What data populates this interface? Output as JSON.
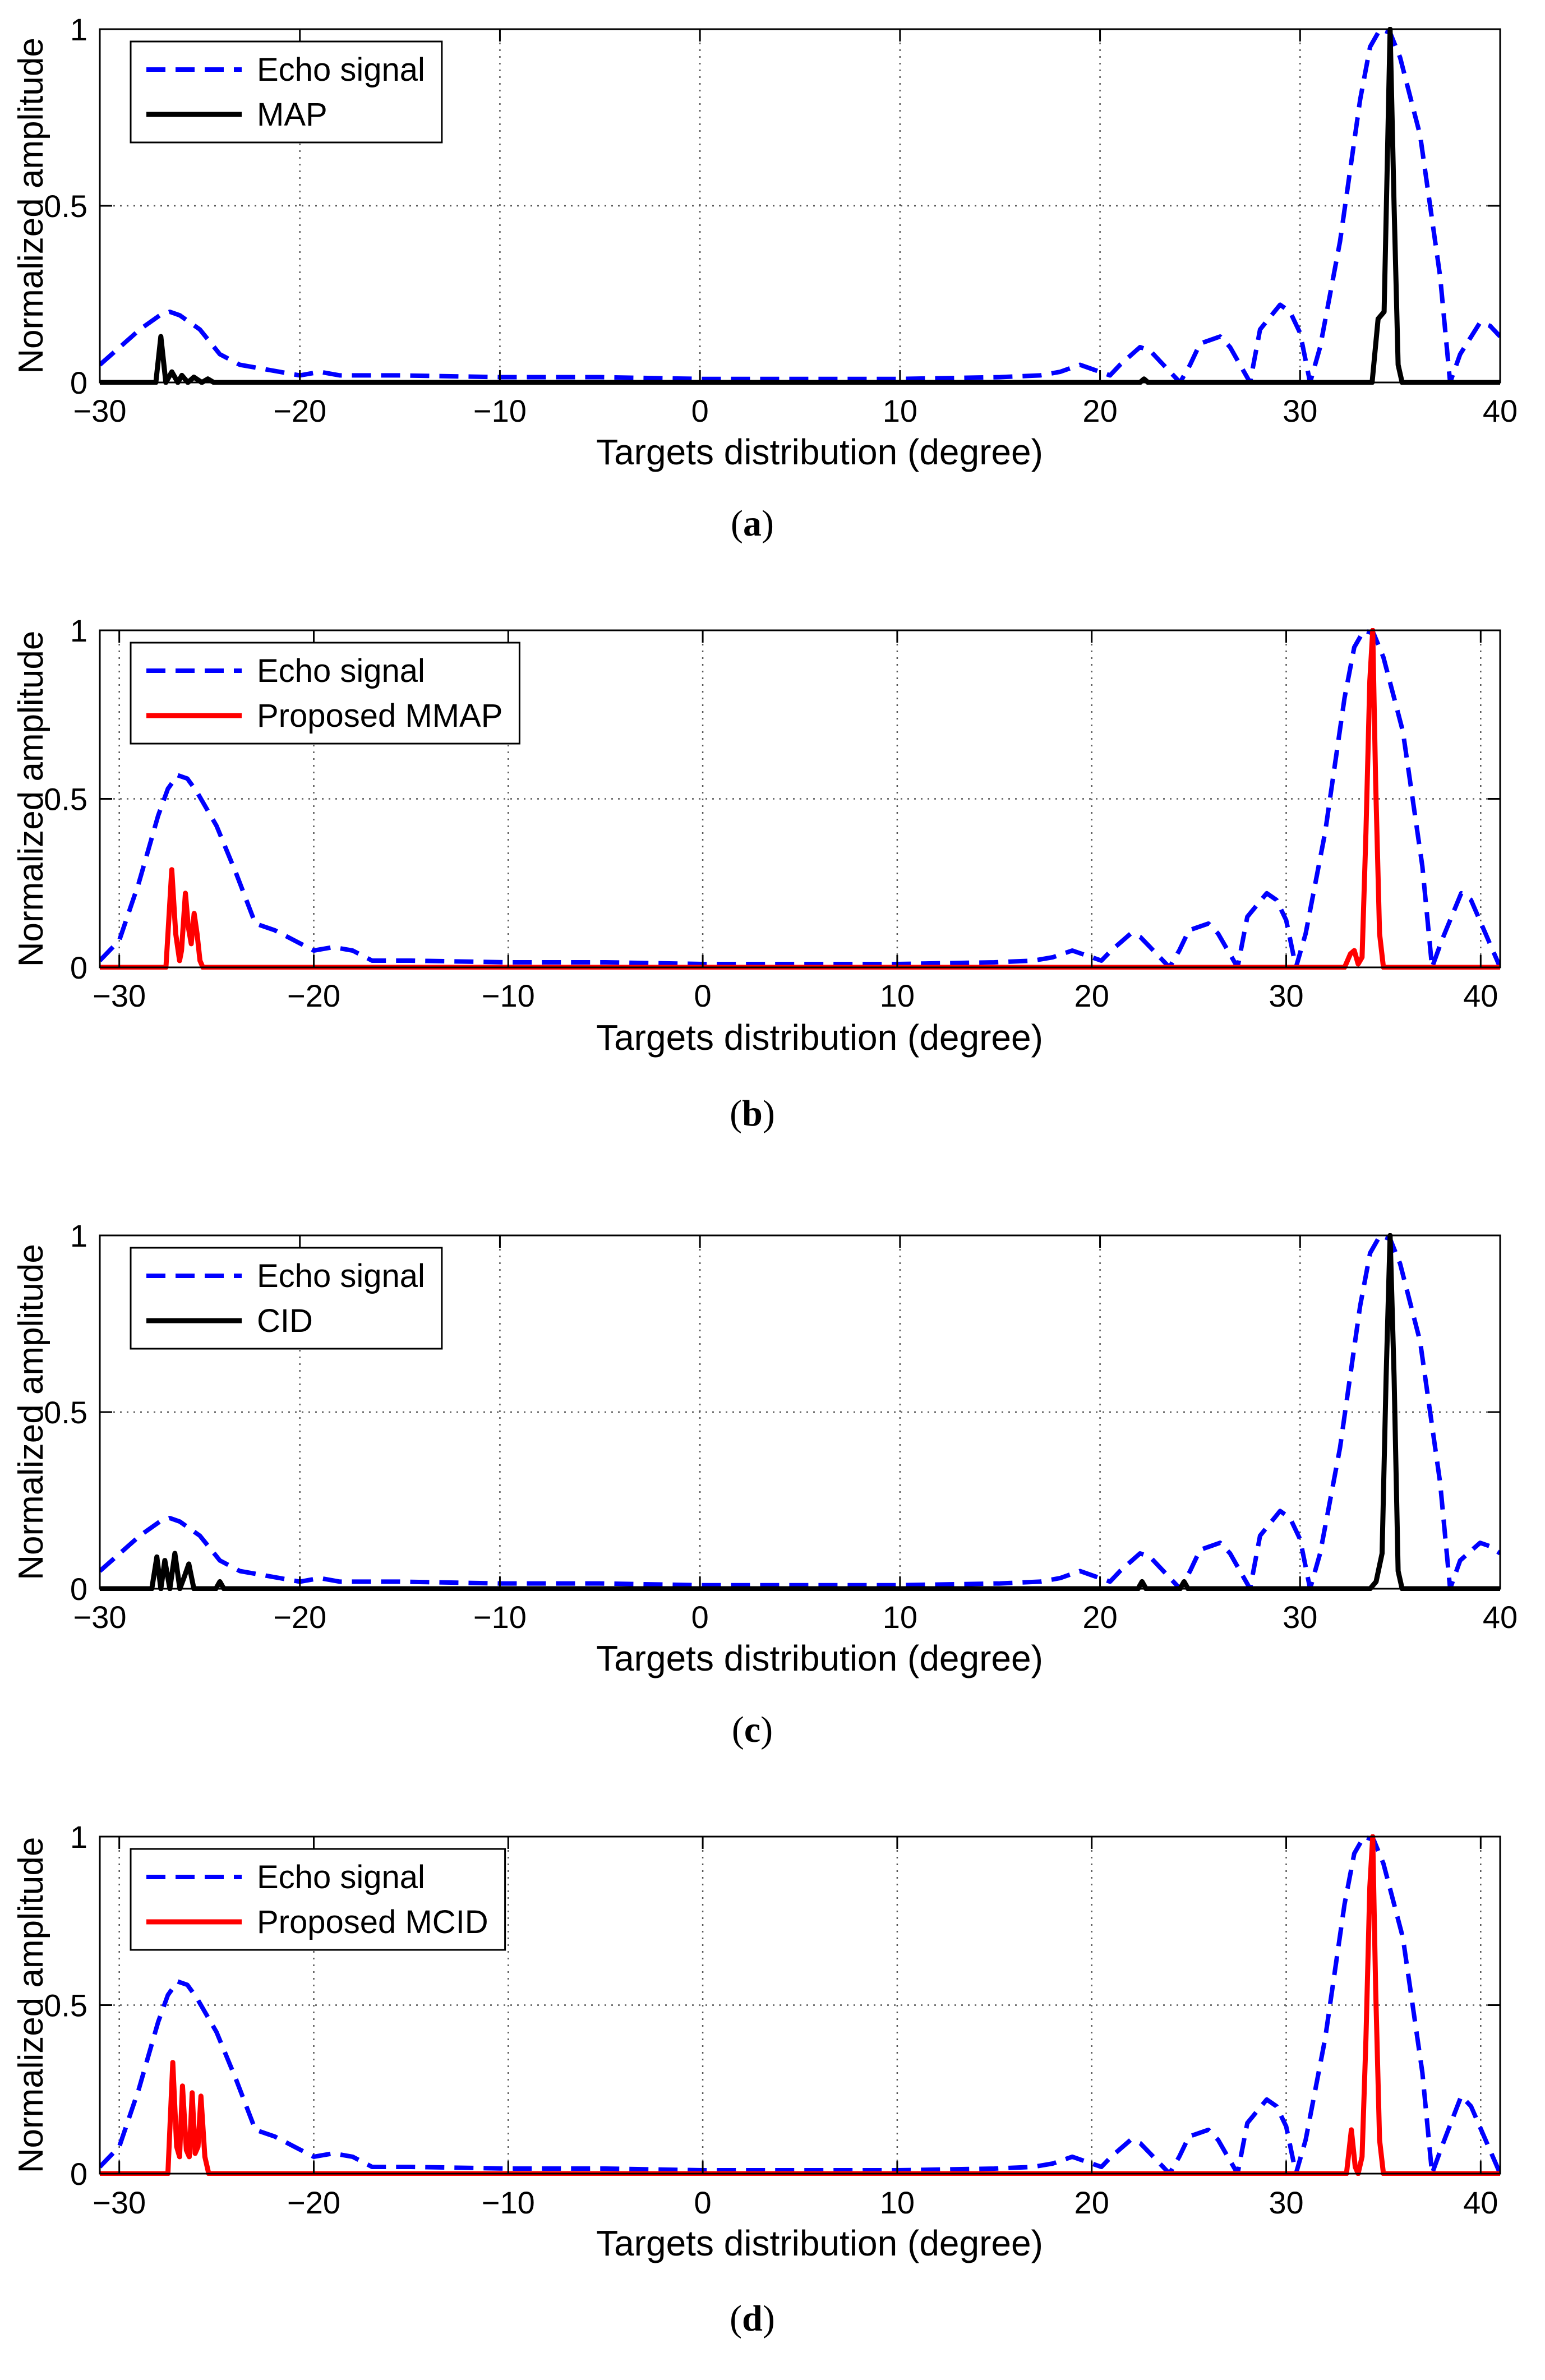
{
  "colors": {
    "echo": "#0000ff",
    "map": "#000000",
    "mmap": "#ff0000",
    "cid": "#000000",
    "mcid": "#ff0000",
    "grid": "#555555",
    "axes": "#000000"
  },
  "chart_data": [
    {
      "type": "line",
      "caption": "a",
      "xlabel": "Targets distribution (degree)",
      "ylabel": "Normalized amplitude",
      "xlim": [
        -30,
        40
      ],
      "ylim": [
        0,
        1
      ],
      "xticks": [
        -30,
        -20,
        -10,
        0,
        10,
        20,
        30,
        40
      ],
      "xtick_labels": [
        "−30",
        "−20",
        "−10",
        "0",
        "10",
        "20",
        "30",
        "40"
      ],
      "yticks": [
        0,
        0.5,
        1
      ],
      "ytick_labels": [
        "0",
        "0.5",
        "1"
      ],
      "grid": true,
      "legend_position": "top-left",
      "series": [
        {
          "name": "Echo signal",
          "style": "dashed",
          "color_key": "echo",
          "x": [
            -30,
            -29,
            -28,
            -27,
            -26.5,
            -26,
            -25,
            -24,
            -23,
            -22,
            -21,
            -20,
            -19,
            -18,
            -17,
            -15,
            -10,
            -5,
            0,
            5,
            10,
            15,
            17,
            18,
            19,
            19.5,
            20.5,
            21,
            22,
            22.5,
            23,
            24,
            24.5,
            25,
            26,
            26.5,
            27.5,
            28,
            29,
            29.5,
            30,
            30.5,
            31,
            32,
            33,
            33.5,
            34,
            34.5,
            35,
            36,
            37,
            37.5,
            38,
            39,
            39.5,
            40
          ],
          "y": [
            0.05,
            0.1,
            0.15,
            0.19,
            0.2,
            0.19,
            0.15,
            0.08,
            0.05,
            0.04,
            0.03,
            0.02,
            0.03,
            0.02,
            0.02,
            0.02,
            0.015,
            0.015,
            0.01,
            0.01,
            0.01,
            0.015,
            0.02,
            0.03,
            0.05,
            0.04,
            0.02,
            0.05,
            0.1,
            0.09,
            0.06,
            0.0,
            0.05,
            0.11,
            0.13,
            0.1,
            0.0,
            0.15,
            0.22,
            0.2,
            0.14,
            0.0,
            0.1,
            0.4,
            0.8,
            0.95,
            1.0,
            0.99,
            0.92,
            0.7,
            0.3,
            0.0,
            0.08,
            0.17,
            0.16,
            0.13
          ]
        },
        {
          "name": "MAP",
          "style": "solid",
          "color_key": "map",
          "x": [
            -30,
            -27.2,
            -26.95,
            -26.7,
            -26.4,
            -26.1,
            -25.9,
            -25.6,
            -25.3,
            -24.9,
            -24.6,
            -24.3,
            -24,
            -20,
            0,
            22,
            22.2,
            22.4,
            33.6,
            33.9,
            34.2,
            34.35,
            34.5,
            34.7,
            34.9,
            35.1,
            40
          ],
          "y": [
            0,
            0,
            0.13,
            0,
            0.03,
            0,
            0.02,
            0,
            0.015,
            0,
            0.01,
            0,
            0,
            0,
            0,
            0,
            0.01,
            0,
            0,
            0.18,
            0.2,
            0.6,
            1.0,
            0.5,
            0.05,
            0,
            0
          ]
        }
      ]
    },
    {
      "type": "line",
      "caption": "b",
      "xlabel": "Targets distribution (degree)",
      "ylabel": "Normalized amplitude",
      "xlim": [
        -31,
        41
      ],
      "ylim": [
        0,
        1
      ],
      "xticks": [
        -30,
        -20,
        -10,
        0,
        10,
        20,
        30,
        40
      ],
      "xtick_labels": [
        "−30",
        "−20",
        "−10",
        "0",
        "10",
        "20",
        "30",
        "40"
      ],
      "yticks": [
        0,
        0.5,
        1
      ],
      "ytick_labels": [
        "0",
        "0.5",
        "1"
      ],
      "grid": true,
      "legend_position": "top-left",
      "series": [
        {
          "name": "Echo signal",
          "style": "dashed",
          "color_key": "echo",
          "x": [
            -31,
            -30,
            -29,
            -28,
            -27.5,
            -27,
            -26.5,
            -26,
            -25,
            -24,
            -23,
            -22,
            -21,
            -20,
            -19,
            -18,
            -17,
            -15,
            -10,
            -5,
            0,
            5,
            10,
            15,
            17,
            18,
            19,
            19.5,
            20.5,
            21,
            22,
            22.5,
            23,
            24,
            24.5,
            25,
            26,
            26.5,
            27.5,
            28,
            29,
            29.5,
            30,
            30.5,
            31,
            32,
            33,
            33.5,
            34,
            34.5,
            35,
            36,
            37,
            37.5,
            38,
            39,
            39.5,
            41
          ],
          "y": [
            0.02,
            0.08,
            0.25,
            0.45,
            0.53,
            0.57,
            0.56,
            0.52,
            0.42,
            0.28,
            0.13,
            0.11,
            0.08,
            0.05,
            0.06,
            0.05,
            0.02,
            0.02,
            0.015,
            0.015,
            0.01,
            0.01,
            0.01,
            0.015,
            0.02,
            0.03,
            0.05,
            0.04,
            0.02,
            0.05,
            0.1,
            0.09,
            0.06,
            0.0,
            0.05,
            0.11,
            0.13,
            0.1,
            0.0,
            0.15,
            0.22,
            0.2,
            0.14,
            0.0,
            0.1,
            0.4,
            0.8,
            0.95,
            1.0,
            0.99,
            0.92,
            0.7,
            0.3,
            0.0,
            0.08,
            0.22,
            0.2,
            0.0
          ]
        },
        {
          "name": "Proposed MMAP",
          "style": "solid",
          "color_key": "mmap",
          "x": [
            -31,
            -27.6,
            -27.3,
            -27.1,
            -26.9,
            -26.8,
            -26.6,
            -26.45,
            -26.3,
            -26.15,
            -26.0,
            -25.85,
            -25.7,
            -25.4,
            0,
            33.0,
            33.3,
            33.5,
            33.7,
            33.9,
            34.1,
            34.3,
            34.45,
            34.6,
            34.8,
            35.0,
            41
          ],
          "y": [
            0,
            0,
            0.29,
            0.1,
            0.02,
            0.05,
            0.22,
            0.12,
            0.07,
            0.16,
            0.1,
            0.02,
            0,
            0,
            0,
            0,
            0.04,
            0.05,
            0.01,
            0.03,
            0.4,
            0.85,
            1.0,
            0.55,
            0.1,
            0,
            0
          ]
        }
      ]
    },
    {
      "type": "line",
      "caption": "c",
      "xlabel": "Targets distribution (degree)",
      "ylabel": "Normalized amplitude",
      "xlim": [
        -30,
        40
      ],
      "ylim": [
        0,
        1
      ],
      "xticks": [
        -30,
        -20,
        -10,
        0,
        10,
        20,
        30,
        40
      ],
      "xtick_labels": [
        "−30",
        "−20",
        "−10",
        "0",
        "10",
        "20",
        "30",
        "40"
      ],
      "yticks": [
        0,
        0.5,
        1
      ],
      "ytick_labels": [
        "0",
        "0.5",
        "1"
      ],
      "grid": true,
      "legend_position": "top-left",
      "series": [
        {
          "name": "Echo signal",
          "style": "dashed",
          "color_key": "echo",
          "x": [
            -30,
            -29,
            -28,
            -27,
            -26.5,
            -26,
            -25,
            -24,
            -23,
            -22,
            -21,
            -20,
            -19,
            -18,
            -17,
            -15,
            -10,
            -5,
            0,
            5,
            10,
            15,
            17,
            18,
            19,
            19.5,
            20.5,
            21,
            22,
            22.5,
            23,
            24,
            24.5,
            25,
            26,
            26.5,
            27.5,
            28,
            29,
            29.5,
            30,
            30.5,
            31,
            32,
            33,
            33.5,
            34,
            34.5,
            35,
            36,
            37,
            37.5,
            38,
            39,
            39.5,
            40
          ],
          "y": [
            0.05,
            0.1,
            0.15,
            0.19,
            0.2,
            0.19,
            0.15,
            0.08,
            0.05,
            0.04,
            0.03,
            0.02,
            0.03,
            0.02,
            0.02,
            0.02,
            0.015,
            0.015,
            0.01,
            0.01,
            0.01,
            0.015,
            0.02,
            0.03,
            0.05,
            0.04,
            0.02,
            0.05,
            0.1,
            0.09,
            0.06,
            0.0,
            0.05,
            0.11,
            0.13,
            0.1,
            0.0,
            0.15,
            0.22,
            0.2,
            0.14,
            0.0,
            0.1,
            0.4,
            0.8,
            0.95,
            1.0,
            0.99,
            0.92,
            0.7,
            0.3,
            0.0,
            0.08,
            0.13,
            0.12,
            0.1
          ]
        },
        {
          "name": "CID",
          "style": "solid",
          "color_key": "cid",
          "x": [
            -30,
            -27.4,
            -27.15,
            -26.95,
            -26.75,
            -26.5,
            -26.25,
            -26.0,
            -25.8,
            -25.55,
            -25.3,
            -25.1,
            -24.2,
            -24.0,
            -23.8,
            0,
            21.9,
            22.1,
            22.3,
            24.0,
            24.2,
            24.4,
            33.5,
            33.8,
            34.1,
            34.3,
            34.5,
            34.7,
            34.9,
            35.1,
            40
          ],
          "y": [
            0,
            0,
            0.09,
            0,
            0.08,
            0.0,
            0.1,
            0.0,
            0.03,
            0.07,
            0.0,
            0,
            0,
            0.02,
            0,
            0,
            0,
            0.02,
            0,
            0,
            0.02,
            0,
            0,
            0.02,
            0.1,
            0.6,
            1.0,
            0.6,
            0.05,
            0,
            0
          ]
        }
      ]
    },
    {
      "type": "line",
      "caption": "d",
      "xlabel": "Targets distribution (degree)",
      "ylabel": "Normalized amplitude",
      "xlim": [
        -31,
        41
      ],
      "ylim": [
        0,
        1
      ],
      "xticks": [
        -30,
        -20,
        -10,
        0,
        10,
        20,
        30,
        40
      ],
      "xtick_labels": [
        "−30",
        "−20",
        "−10",
        "0",
        "10",
        "20",
        "30",
        "40"
      ],
      "yticks": [
        0,
        0.5,
        1
      ],
      "ytick_labels": [
        "0",
        "0.5",
        "1"
      ],
      "grid": true,
      "legend_position": "top-left",
      "series": [
        {
          "name": "Echo signal",
          "style": "dashed",
          "color_key": "echo",
          "x": [
            -31,
            -30,
            -29,
            -28,
            -27.5,
            -27,
            -26.5,
            -26,
            -25,
            -24,
            -23,
            -22,
            -21,
            -20,
            -19,
            -18,
            -17,
            -15,
            -10,
            -5,
            0,
            5,
            10,
            15,
            17,
            18,
            19,
            19.5,
            20.5,
            21,
            22,
            22.5,
            23,
            24,
            24.5,
            25,
            26,
            26.5,
            27.5,
            28,
            29,
            29.5,
            30,
            30.5,
            31,
            32,
            33,
            33.5,
            34,
            34.5,
            35,
            36,
            37,
            37.5,
            38,
            39,
            39.5,
            41
          ],
          "y": [
            0.02,
            0.08,
            0.25,
            0.45,
            0.53,
            0.57,
            0.56,
            0.52,
            0.42,
            0.28,
            0.13,
            0.11,
            0.08,
            0.05,
            0.06,
            0.05,
            0.02,
            0.02,
            0.015,
            0.015,
            0.01,
            0.01,
            0.01,
            0.015,
            0.02,
            0.03,
            0.05,
            0.04,
            0.02,
            0.05,
            0.1,
            0.09,
            0.06,
            0.0,
            0.05,
            0.11,
            0.13,
            0.1,
            0.0,
            0.15,
            0.22,
            0.2,
            0.14,
            0.0,
            0.1,
            0.4,
            0.8,
            0.95,
            1.0,
            0.99,
            0.92,
            0.7,
            0.3,
            0.0,
            0.08,
            0.23,
            0.2,
            0.0
          ]
        },
        {
          "name": "Proposed MCID",
          "style": "solid",
          "color_key": "mcid",
          "x": [
            -31,
            -27.5,
            -27.25,
            -27.05,
            -26.9,
            -26.75,
            -26.55,
            -26.4,
            -26.25,
            -26.1,
            -25.95,
            -25.8,
            -25.6,
            -25.4,
            0,
            33.1,
            33.35,
            33.55,
            33.7,
            33.9,
            34.1,
            34.3,
            34.45,
            34.6,
            34.8,
            35.0,
            41
          ],
          "y": [
            0,
            0,
            0.33,
            0.08,
            0.05,
            0.26,
            0.07,
            0.05,
            0.24,
            0.06,
            0.08,
            0.23,
            0.05,
            0,
            0,
            0,
            0.13,
            0.02,
            0,
            0.05,
            0.4,
            0.85,
            1.0,
            0.55,
            0.1,
            0,
            0
          ]
        }
      ]
    }
  ]
}
